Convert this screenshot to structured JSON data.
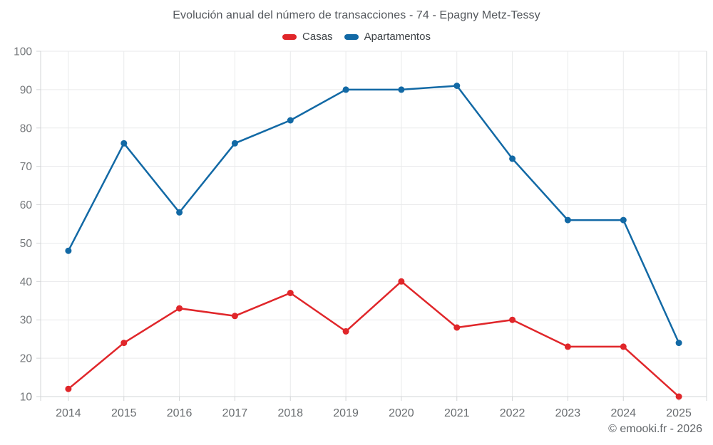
{
  "chart_data": {
    "type": "line",
    "title": "Evolución anual del número de transacciones - 74 - Epagny Metz-Tessy",
    "xlabel": "",
    "ylabel": "",
    "categories": [
      "2014",
      "2015",
      "2016",
      "2017",
      "2018",
      "2019",
      "2020",
      "2021",
      "2022",
      "2023",
      "2024",
      "2025"
    ],
    "series": [
      {
        "name": "Casas",
        "color": "#e0262a",
        "values": [
          12,
          24,
          33,
          31,
          37,
          27,
          40,
          28,
          30,
          23,
          23,
          10
        ]
      },
      {
        "name": "Apartamentos",
        "color": "#1269a5",
        "values": [
          48,
          76,
          58,
          76,
          82,
          90,
          90,
          91,
          72,
          56,
          56,
          24
        ]
      }
    ],
    "ylim": [
      10,
      100
    ],
    "yticks": [
      10,
      20,
      30,
      40,
      50,
      60,
      70,
      80,
      90,
      100
    ],
    "grid": true,
    "legend_position": "top"
  },
  "footer": {
    "credit": "© emooki.fr - 2026"
  },
  "colors": {
    "background": "#ffffff",
    "gridline": "#e9eaeb",
    "axis_line": "#d3d5d7",
    "y_tick_label": "#75787b",
    "x_tick_label": "#6a6e71",
    "title_text": "#53575c",
    "legend_text": "#3f4448",
    "footer_text": "#62666a",
    "casas_red": "#e0262a",
    "apartamentos_blue": "#1269a5"
  }
}
